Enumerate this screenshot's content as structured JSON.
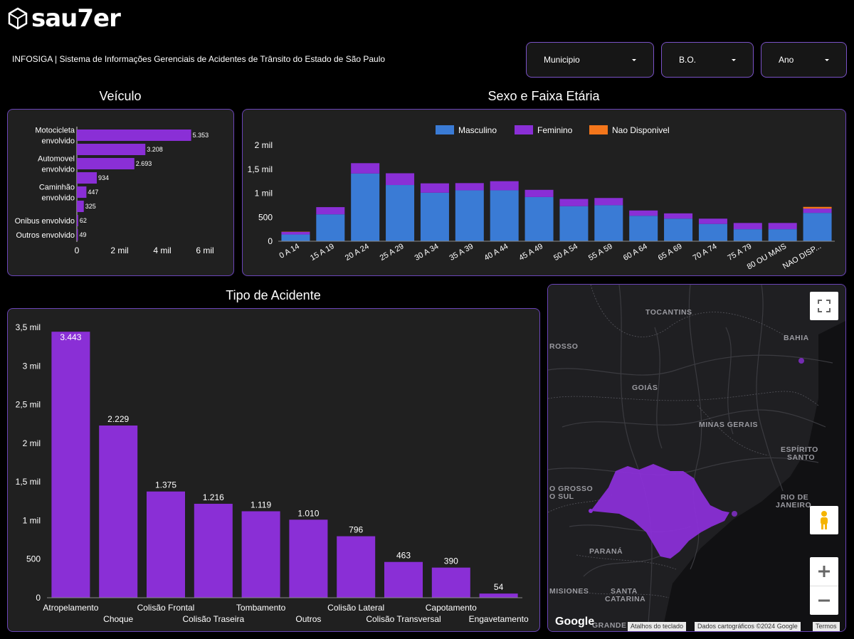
{
  "header": {
    "logo_text": "sau7er",
    "subtitle": "INFOSIGA | Sistema de Informações Gerenciais de Acidentes de Trânsito do Estado de São Paulo"
  },
  "filters": [
    {
      "label": "Municipio"
    },
    {
      "label": "B.O."
    },
    {
      "label": "Ano"
    }
  ],
  "colors": {
    "purple": "#8a2fd6",
    "blue": "#3a7bd5",
    "orange": "#f4761b",
    "panel_border": "#6a44b8"
  },
  "chart_data": [
    {
      "id": "veiculo",
      "type": "bar",
      "orientation": "horizontal",
      "title": "Veículo",
      "categories": [
        "Motocicleta envolvido",
        "",
        "Automovel envolvido",
        "",
        "Caminhão envolvido",
        "",
        "Onibus envolvido",
        "Outros envolvido"
      ],
      "category_labels": [
        [
          "Motocicleta",
          "envolvido"
        ],
        [],
        [
          "Automovel",
          "envolvido"
        ],
        [],
        [
          "Caminhão",
          "envolvido"
        ],
        [],
        [
          "Onibus envolvido"
        ],
        [
          "Outros envolvido"
        ]
      ],
      "values": [
        5353,
        3208,
        2693,
        934,
        447,
        325,
        62,
        49
      ],
      "value_labels": [
        "5.353",
        "3.208",
        "2.693",
        "934",
        "447",
        "325",
        "62",
        "49"
      ],
      "xlim": [
        0,
        6000
      ],
      "xticks": [
        0,
        2000,
        4000,
        6000
      ],
      "xtick_labels": [
        "0",
        "2 mil",
        "4 mil",
        "6 mil"
      ]
    },
    {
      "id": "sexo",
      "type": "bar",
      "stacked": true,
      "title": "Sexo e Faixa Etária",
      "categories": [
        "0 A 14",
        "15 A 19",
        "20 A 24",
        "25 A 29",
        "30 A 34",
        "35 A 39",
        "40 A 44",
        "45 A 49",
        "50 A 54",
        "55 A 59",
        "60 A 64",
        "65 A 69",
        "70 A 74",
        "75 A 79",
        "80 OU MAIS",
        "NAO DISP..."
      ],
      "series": [
        {
          "name": "Masculino",
          "values": [
            140,
            560,
            1410,
            1170,
            1010,
            1060,
            1060,
            920,
            730,
            750,
            530,
            470,
            360,
            250,
            250,
            590
          ]
        },
        {
          "name": "Feminino",
          "values": [
            55,
            150,
            215,
            245,
            195,
            150,
            190,
            150,
            150,
            150,
            110,
            110,
            110,
            130,
            130,
            90
          ]
        },
        {
          "name": "Nao Disponivel",
          "values": [
            5,
            0,
            0,
            0,
            0,
            0,
            0,
            0,
            0,
            0,
            0,
            0,
            0,
            0,
            0,
            35
          ]
        }
      ],
      "ylim": [
        0,
        2000
      ],
      "yticks": [
        0,
        500,
        1000,
        1500,
        2000
      ],
      "ytick_labels": [
        "0",
        "500",
        "1 mil",
        "1,5 mil",
        "2 mil"
      ],
      "legend": "top"
    },
    {
      "id": "tipo",
      "type": "bar",
      "title": "Tipo de Acidente",
      "categories": [
        "Atropelamento",
        "Choque",
        "Colisão Frontal",
        "Colisão Traseira",
        "Tombamento",
        "Outros",
        "Colisão Lateral",
        "Colisão Transversal",
        "Capotamento",
        "Engavetamento"
      ],
      "values": [
        3443,
        2229,
        1375,
        1216,
        1119,
        1010,
        796,
        463,
        390,
        54
      ],
      "value_labels": [
        "3.443",
        "2.229",
        "1.375",
        "1.216",
        "1.119",
        "1.010",
        "796",
        "463",
        "390",
        "54"
      ],
      "ylim": [
        0,
        3500
      ],
      "yticks": [
        0,
        500,
        1000,
        1500,
        2000,
        2500,
        3000,
        3500
      ],
      "ytick_labels": [
        "0",
        "500",
        "1 mil",
        "1,5 mil",
        "2 mil",
        "2,5 mil",
        "3 mil",
        "3,5 mil"
      ]
    }
  ],
  "map": {
    "labels": [
      "TOCANTINS",
      "BAHIA",
      "ROSSO",
      "GOIÁS",
      "MINAS GERAIS",
      "ESPÍRITO",
      "SANTO",
      "O GROSSO",
      "O SUL",
      "RIO DE",
      "JANEIRO",
      "PARANÁ",
      "SANTA",
      "CATARINA",
      "MISIONES",
      "GRANDE"
    ],
    "google_logo": "Google",
    "footer": {
      "shortcuts": "Atalhos do teclado",
      "data": "Dados cartográficos ©2024 Google",
      "terms": "Termos"
    }
  }
}
